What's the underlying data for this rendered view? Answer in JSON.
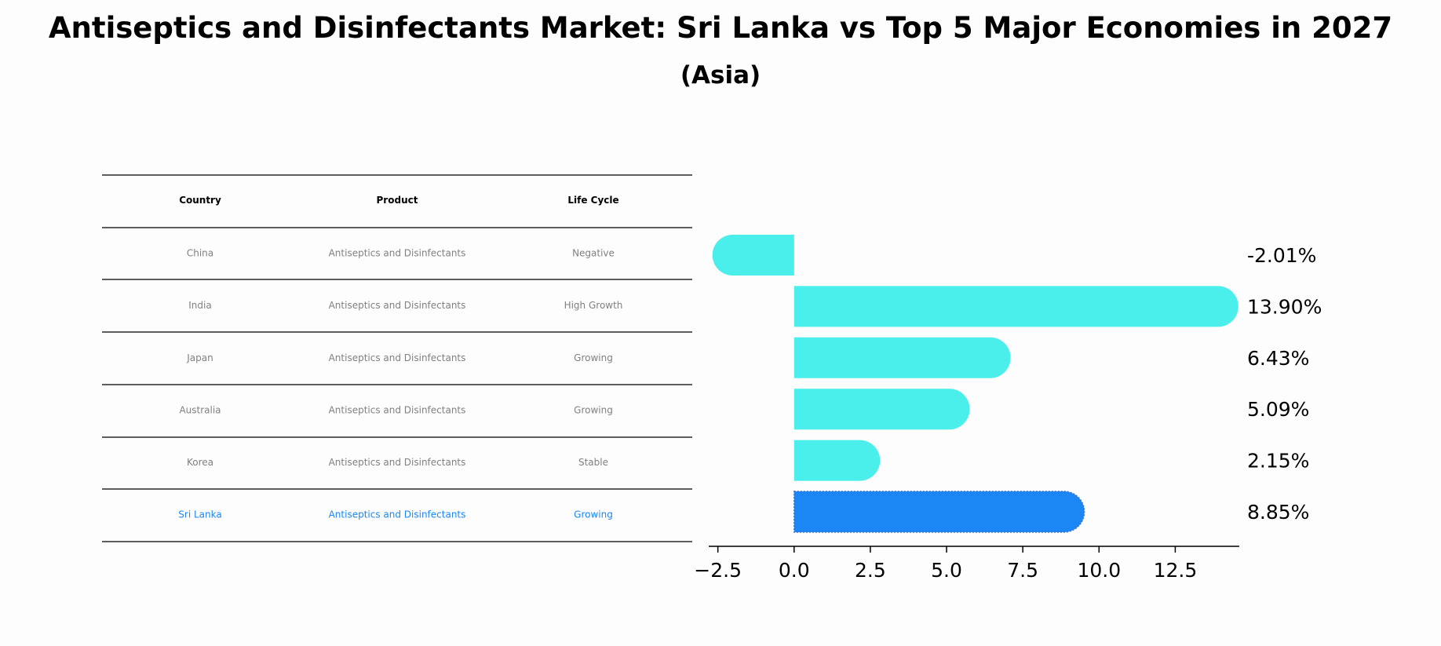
{
  "title": "Antiseptics and Disinfectants Market: Sri Lanka vs Top 5 Major Economies in 2027",
  "subtitle": "(Asia)",
  "table": {
    "headers": [
      "Country",
      "Product",
      "Life Cycle"
    ],
    "rows": [
      {
        "country": "China",
        "product": "Antiseptics and Disinfectants",
        "life_cycle": "Negative",
        "highlight": false
      },
      {
        "country": "India",
        "product": "Antiseptics and Disinfectants",
        "life_cycle": "High Growth",
        "highlight": false
      },
      {
        "country": "Japan",
        "product": "Antiseptics and Disinfectants",
        "life_cycle": "Growing",
        "highlight": false
      },
      {
        "country": "Australia",
        "product": "Antiseptics and Disinfectants",
        "life_cycle": "Growing",
        "highlight": false
      },
      {
        "country": "Korea",
        "product": "Antiseptics and Disinfectants",
        "life_cycle": "Stable",
        "highlight": false
      },
      {
        "country": "Sri Lanka",
        "product": "Antiseptics and Disinfectants",
        "life_cycle": "Growing",
        "highlight": true
      }
    ]
  },
  "chart_data": {
    "type": "bar",
    "orientation": "horizontal",
    "title": "Antiseptics and Disinfectants Market: Sri Lanka vs Top 5 Major Economies in 2027",
    "subtitle": "(Asia)",
    "categories": [
      "China",
      "India",
      "Japan",
      "Australia",
      "Korea",
      "Sri Lanka"
    ],
    "values": [
      -2.01,
      13.9,
      6.43,
      5.09,
      2.15,
      8.85
    ],
    "value_labels": [
      "-2.01%",
      "13.90%",
      "6.43%",
      "5.09%",
      "2.15%",
      "8.85%"
    ],
    "highlight_index": 5,
    "xlim": [
      -2.8,
      14.6
    ],
    "xticks": [
      -2.5,
      0.0,
      2.5,
      5.0,
      7.5,
      10.0,
      12.5
    ],
    "xtick_labels": [
      "−2.5",
      "0.0",
      "2.5",
      "5.0",
      "7.5",
      "10.0",
      "12.5"
    ],
    "xlabel": "",
    "ylabel": "",
    "grid": false
  },
  "colors": {
    "bar": "#4aeeea",
    "highlight_bar": "#1a87f5",
    "muted_text": "#808080",
    "highlight_text": "#1a87f5",
    "rule": "#000000"
  }
}
